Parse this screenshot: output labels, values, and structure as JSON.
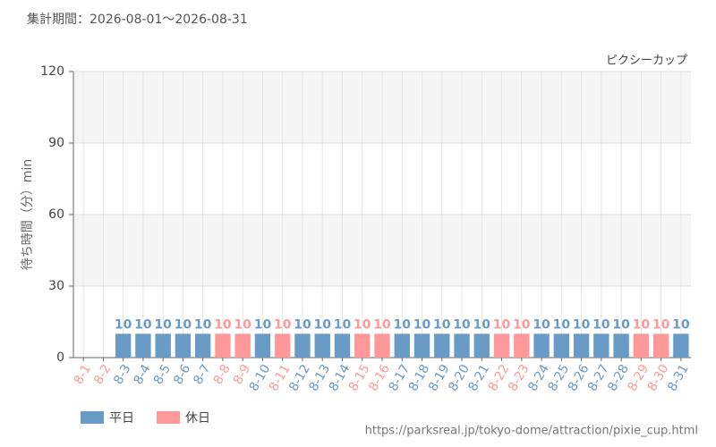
{
  "chart_data": {
    "type": "bar",
    "period": "集計期間：2026-08-01～2026-08-31",
    "title": "ピクシーカップ",
    "y_label": "待ち時間（分）min",
    "source": "https://parksreal.jp/tokyo-dome/attraction/pixie_cup.html",
    "categories": [
      "8-1",
      "8-2",
      "8-3",
      "8-4",
      "8-5",
      "8-6",
      "8-7",
      "8-8",
      "8-9",
      "8-10",
      "8-11",
      "8-12",
      "8-13",
      "8-14",
      "8-15",
      "8-16",
      "8-17",
      "8-18",
      "8-19",
      "8-20",
      "8-21",
      "8-22",
      "8-23",
      "8-24",
      "8-25",
      "8-26",
      "8-27",
      "8-28",
      "8-29",
      "8-30",
      "8-31"
    ],
    "category_series": [
      1,
      1,
      0,
      0,
      0,
      0,
      0,
      1,
      1,
      0,
      1,
      0,
      0,
      0,
      1,
      1,
      0,
      0,
      0,
      0,
      0,
      1,
      1,
      0,
      0,
      0,
      0,
      0,
      1,
      1,
      0
    ],
    "series": [
      {
        "name": "平日",
        "color": "#6a9bc6",
        "values": [
          null,
          null,
          10,
          10,
          10,
          10,
          10,
          null,
          null,
          10,
          null,
          10,
          10,
          10,
          null,
          null,
          10,
          10,
          10,
          10,
          10,
          null,
          null,
          10,
          10,
          10,
          10,
          10,
          null,
          null,
          10
        ]
      },
      {
        "name": "休日",
        "color": "#ff9999",
        "values": [
          null,
          null,
          null,
          null,
          null,
          null,
          null,
          10,
          10,
          null,
          10,
          null,
          null,
          null,
          10,
          10,
          null,
          null,
          null,
          null,
          null,
          10,
          10,
          null,
          null,
          null,
          null,
          null,
          10,
          10,
          null
        ]
      }
    ],
    "ylim": [
      0,
      120
    ],
    "yticks": [
      0,
      30,
      60,
      90,
      120
    ],
    "grid": true
  }
}
